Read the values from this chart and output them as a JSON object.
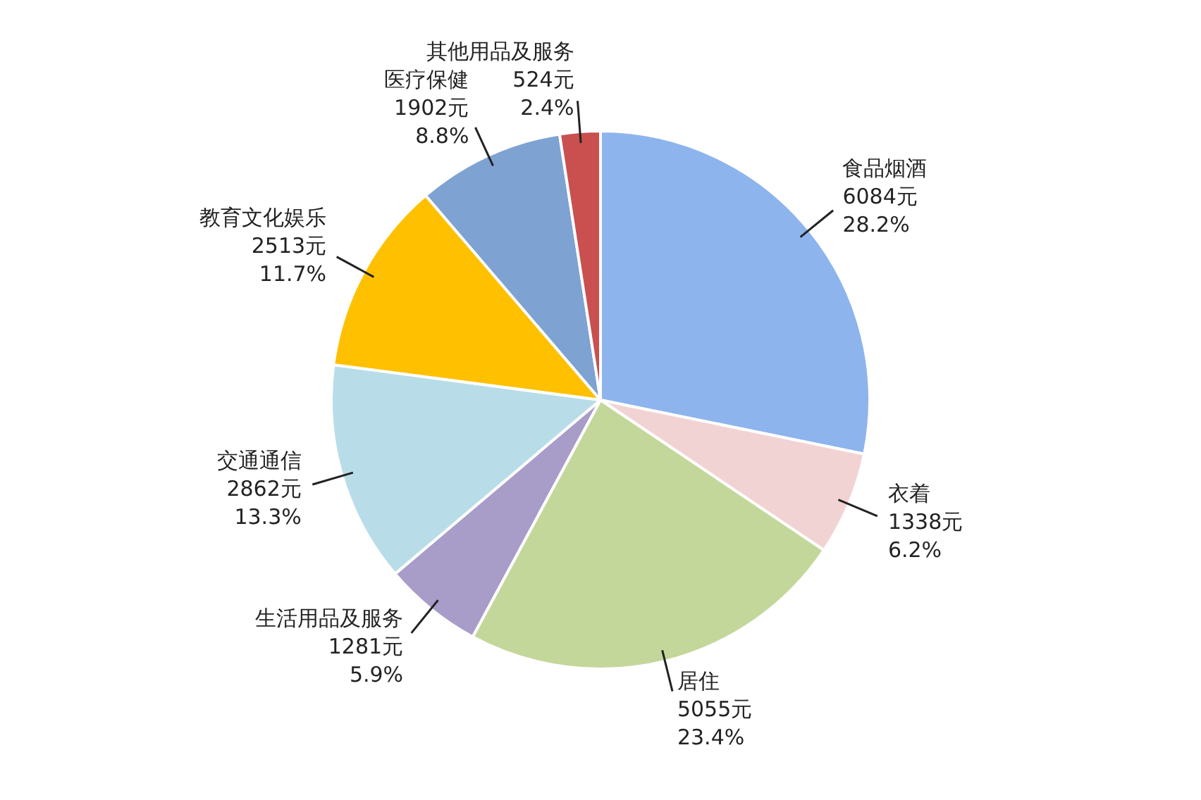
{
  "chart_data": {
    "type": "pie",
    "categories": [
      "食品烟酒",
      "衣着",
      "居住",
      "生活用品及服务",
      "交通通信",
      "教育文化娱乐",
      "医疗保健",
      "其他用品及服务"
    ],
    "values": [
      6084,
      1338,
      5055,
      1281,
      2862,
      2513,
      1902,
      524
    ],
    "colors": [
      "#8db4ec",
      "#f2d3d3",
      "#c4d79b",
      "#a89cc9",
      "#b8dde8",
      "#ffc000",
      "#7ea2d2",
      "#c9504f"
    ],
    "value_labels": [
      "6084元\n28.2%",
      "1338元\n6.2%",
      "5055元\n23.4%",
      "1281元\n5.9%",
      "2862元\n13.3%",
      "2513元\n11.7%",
      "1902元\n8.8%",
      "524元\n2.4%"
    ],
    "legend": false
  }
}
